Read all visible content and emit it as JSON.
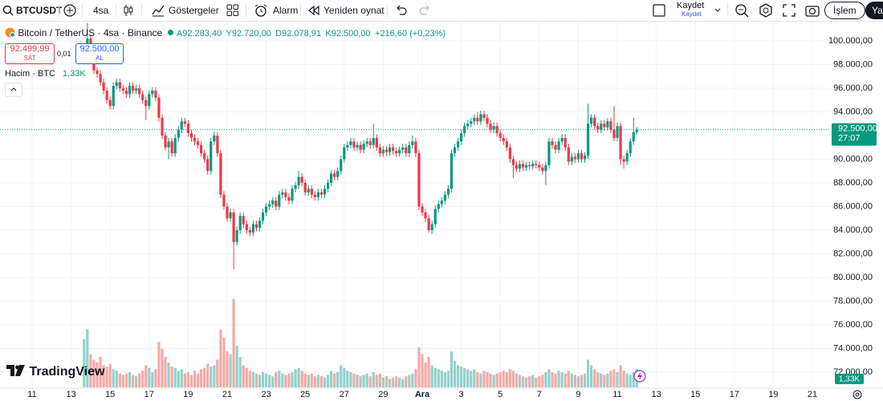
{
  "toolbar": {
    "symbol": "BTCUSDT",
    "interval": "4sa",
    "indicators": "Göstergeler",
    "alert": "Alarm",
    "replay": "Yeniden oynat",
    "save": "Kaydet",
    "save_sub": "Kaydet",
    "trade": "İşlem",
    "publish": "Ya"
  },
  "trade_panel": {
    "sell_price": "92.499,99",
    "sell_label": "SAT",
    "spread": "0,01",
    "buy_price": "92.500,00",
    "buy_label": "AL"
  },
  "logo": "TradingView",
  "chart_data": {
    "type": "candlestick",
    "title": "Bitcoin / TetherUS · 4sa · Binance",
    "ohlc_legend": [
      "A92.283,40",
      "Y92.720,00",
      "D92.078,91",
      "K92.500,00",
      "+216,60 (+0,23%)"
    ],
    "last_price_label": "92.500,00",
    "countdown": "27:07",
    "up_color": "#089981",
    "down_color": "#f23645",
    "volume_up_color": "#92d2cc",
    "volume_down_color": "#f7a9a7",
    "grid": true,
    "xlim": [
      -39.5,
      982.7
    ],
    "xticks": [
      {
        "value": 0,
        "label": "11"
      },
      {
        "value": 48,
        "label": "13"
      },
      {
        "value": 96,
        "label": "15"
      },
      {
        "value": 144,
        "label": "17"
      },
      {
        "value": 192,
        "label": "19"
      },
      {
        "value": 240,
        "label": "21"
      },
      {
        "value": 288,
        "label": "23"
      },
      {
        "value": 336,
        "label": "25"
      },
      {
        "value": 384,
        "label": "27"
      },
      {
        "value": 432,
        "label": "29"
      },
      {
        "value": 480,
        "label": "Ara"
      },
      {
        "value": 528,
        "label": "3"
      },
      {
        "value": 576,
        "label": "5"
      },
      {
        "value": 624,
        "label": "7"
      },
      {
        "value": 672,
        "label": "9"
      },
      {
        "value": 720,
        "label": "11"
      },
      {
        "value": 768,
        "label": "13"
      },
      {
        "value": 816,
        "label": "15"
      },
      {
        "value": 864,
        "label": "17"
      },
      {
        "value": 912,
        "label": "19"
      },
      {
        "value": 960,
        "label": "21"
      }
    ],
    "ylim": [
      70644,
      101627
    ],
    "yticks": [
      {
        "value": 72000,
        "label": "72.000,00"
      },
      {
        "value": 74000,
        "label": "74.000,00"
      },
      {
        "value": 76000,
        "label": "76.000,00"
      },
      {
        "value": 78000,
        "label": "78.000,00"
      },
      {
        "value": 80000,
        "label": "80.000,00"
      },
      {
        "value": 82000,
        "label": "82.000,00"
      },
      {
        "value": 84000,
        "label": "84.000,00"
      },
      {
        "value": 86000,
        "label": "86.000,00"
      },
      {
        "value": 88000,
        "label": "88.000,00"
      },
      {
        "value": 90000,
        "label": "90.000,00"
      },
      {
        "value": 92000,
        "label": "92.000,00"
      },
      {
        "value": 94000,
        "label": "94.000,00"
      },
      {
        "value": 96000,
        "label": "96.000,00"
      },
      {
        "value": 98000,
        "label": "98.000,00"
      },
      {
        "value": 100000,
        "label": "100.000,00"
      }
    ],
    "x": [
      64,
      68,
      72,
      76,
      80,
      84,
      88,
      92,
      96,
      100,
      104,
      108,
      112,
      116,
      120,
      124,
      128,
      132,
      136,
      140,
      144,
      148,
      152,
      156,
      160,
      164,
      168,
      172,
      176,
      180,
      184,
      188,
      192,
      196,
      200,
      204,
      208,
      212,
      216,
      220,
      224,
      228,
      232,
      236,
      240,
      244,
      248,
      252,
      256,
      260,
      264,
      268,
      272,
      276,
      280,
      284,
      288,
      292,
      296,
      300,
      304,
      308,
      312,
      316,
      320,
      324,
      328,
      332,
      336,
      340,
      344,
      348,
      352,
      356,
      360,
      364,
      368,
      372,
      376,
      380,
      384,
      388,
      392,
      396,
      400,
      404,
      408,
      412,
      416,
      420,
      424,
      428,
      432,
      436,
      440,
      444,
      448,
      452,
      456,
      460,
      464,
      468,
      472,
      476,
      480,
      484,
      488,
      492,
      496,
      500,
      504,
      508,
      512,
      516,
      520,
      524,
      528,
      532,
      536,
      540,
      544,
      548,
      552,
      556,
      560,
      564,
      568,
      572,
      576,
      580,
      584,
      588,
      592,
      596,
      600,
      604,
      608,
      612,
      616,
      620,
      624,
      628,
      632,
      636,
      640,
      644,
      648,
      652,
      656,
      660,
      664,
      668,
      672,
      676,
      680,
      684,
      688,
      692,
      696,
      700,
      704,
      708,
      712,
      716,
      720,
      724,
      728,
      732,
      736,
      740,
      744
    ],
    "open": [
      99000,
      99500,
      100200,
      99000,
      97500,
      97200,
      96500,
      95800,
      95000,
      94500,
      96200,
      96500,
      96000,
      95800,
      95500,
      96200,
      95800,
      96000,
      95500,
      95000,
      94500,
      95500,
      95800,
      95200,
      93500,
      92000,
      91000,
      91500,
      90500,
      91800,
      92500,
      93200,
      93000,
      92200,
      91800,
      91500,
      91200,
      90500,
      90000,
      89000,
      91500,
      92000,
      90500,
      87000,
      86000,
      85000,
      85500,
      83000,
      84000,
      85200,
      84500,
      84000,
      83800,
      84500,
      84200,
      84800,
      85500,
      86000,
      86200,
      86500,
      86000,
      87000,
      87200,
      86800,
      86500,
      87500,
      87800,
      88500,
      88000,
      87200,
      87500,
      87000,
      86800,
      87200,
      87000,
      87500,
      88000,
      88800,
      88500,
      89000,
      90000,
      91000,
      91200,
      91500,
      91000,
      91200,
      90800,
      91300,
      91500,
      91200,
      91800,
      91000,
      90500,
      90800,
      90600,
      91000,
      90700,
      90500,
      90800,
      91000,
      90500,
      91200,
      91500,
      90500,
      86000,
      85500,
      85000,
      84000,
      84500,
      85800,
      86200,
      86500,
      87000,
      87500,
      90500,
      91000,
      91500,
      92200,
      92800,
      93000,
      93200,
      93500,
      93200,
      93800,
      93500,
      93000,
      92500,
      92800,
      92200,
      91800,
      91500,
      91000,
      90000,
      89500,
      89200,
      89600,
      89300,
      89500,
      89400,
      89600,
      89500,
      89300,
      89000,
      89500,
      91500,
      91200,
      90800,
      91500,
      91800,
      91000,
      89800,
      90200,
      90000,
      90500,
      90000,
      90300,
      93000,
      93500,
      92800,
      92500,
      93000,
      92700,
      93200,
      92500,
      91800,
      92800,
      90000,
      89800,
      90500,
      91500,
      92283.4
    ],
    "high": [
      99800,
      101500,
      100500,
      99300,
      97800,
      97500,
      96800,
      96100,
      95300,
      96500,
      96800,
      96800,
      96300,
      96100,
      96500,
      96500,
      96300,
      96300,
      95800,
      95300,
      95800,
      96100,
      96100,
      95500,
      93800,
      92300,
      91800,
      91800,
      92100,
      92800,
      93500,
      93500,
      93300,
      92500,
      92100,
      91800,
      91500,
      90800,
      90300,
      91800,
      92300,
      92300,
      90800,
      87300,
      86300,
      85800,
      85800,
      84300,
      85500,
      85500,
      84800,
      84300,
      84800,
      84800,
      85100,
      85800,
      86300,
      86500,
      86800,
      86800,
      87300,
      87500,
      87500,
      87100,
      87800,
      88100,
      89000,
      88800,
      88300,
      87800,
      87800,
      87300,
      87500,
      87500,
      87800,
      88300,
      89100,
      89100,
      89300,
      90300,
      91300,
      91500,
      91800,
      91800,
      91500,
      91500,
      91600,
      91800,
      91800,
      93000,
      92100,
      91300,
      91100,
      91100,
      91300,
      91300,
      91000,
      91100,
      91300,
      91300,
      91500,
      92000,
      91800,
      90800,
      86300,
      85800,
      85300,
      84800,
      86100,
      86500,
      86800,
      87300,
      87800,
      90800,
      91300,
      91800,
      92500,
      93100,
      93300,
      93500,
      93800,
      94000,
      94100,
      94100,
      93800,
      93300,
      93100,
      93100,
      92500,
      92100,
      91800,
      91300,
      90300,
      89800,
      89900,
      89900,
      89800,
      89800,
      89900,
      89900,
      89800,
      89600,
      89800,
      91800,
      91800,
      91500,
      91800,
      92100,
      92100,
      91300,
      90500,
      90500,
      90800,
      90800,
      90600,
      94700,
      93800,
      93800,
      93100,
      93300,
      93300,
      93500,
      93500,
      94500,
      93100,
      93100,
      90300,
      90800,
      91800,
      93500,
      92720
    ],
    "low": [
      98700,
      99200,
      98700,
      97200,
      96900,
      96200,
      95500,
      94700,
      94200,
      94200,
      95900,
      95700,
      95500,
      95200,
      95200,
      95500,
      95500,
      95200,
      94700,
      93300,
      94200,
      95200,
      94900,
      93200,
      91700,
      90700,
      90000,
      90200,
      90200,
      91500,
      92200,
      92700,
      91900,
      91500,
      91200,
      90900,
      90200,
      89700,
      88700,
      88700,
      91200,
      90200,
      86700,
      85700,
      84700,
      84700,
      80700,
      82700,
      83700,
      84200,
      83700,
      83500,
      83500,
      83900,
      83900,
      84500,
      85200,
      85700,
      85900,
      85700,
      85700,
      86700,
      86500,
      86200,
      86200,
      87200,
      87500,
      87700,
      86900,
      86900,
      86700,
      86500,
      86500,
      86700,
      86700,
      87200,
      87700,
      88200,
      88200,
      88700,
      89700,
      90700,
      90900,
      90700,
      90700,
      90500,
      90500,
      91000,
      90900,
      90900,
      90700,
      90200,
      90200,
      90300,
      90300,
      90400,
      90200,
      90200,
      90500,
      90200,
      90200,
      90900,
      90200,
      85700,
      85200,
      84700,
      83800,
      83700,
      84200,
      85500,
      85900,
      86200,
      86700,
      87200,
      90200,
      90700,
      91200,
      91900,
      92500,
      92700,
      92900,
      92900,
      92900,
      93200,
      92700,
      92200,
      92200,
      91900,
      91500,
      91200,
      90700,
      89700,
      88400,
      88900,
      88900,
      89000,
      89000,
      89100,
      89100,
      89200,
      89000,
      88700,
      87800,
      89200,
      90900,
      90500,
      90500,
      91200,
      90700,
      89500,
      89500,
      89700,
      89700,
      89700,
      89700,
      90000,
      92700,
      92500,
      92200,
      92200,
      92400,
      92400,
      92200,
      91500,
      91500,
      89500,
      89200,
      89500,
      90200,
      91200,
      92078.91
    ],
    "close": [
      99500,
      100200,
      99000,
      97500,
      97200,
      96500,
      95800,
      95000,
      94500,
      96200,
      96500,
      96000,
      95800,
      95500,
      96200,
      95800,
      96000,
      95500,
      95000,
      94500,
      95500,
      95800,
      95200,
      93500,
      92000,
      91000,
      91500,
      90500,
      91800,
      92500,
      93200,
      93000,
      92200,
      91800,
      91500,
      91200,
      90500,
      90000,
      89000,
      91500,
      92000,
      90500,
      87000,
      86000,
      85000,
      85500,
      83000,
      84000,
      85200,
      84500,
      84000,
      83800,
      84500,
      84200,
      84800,
      85500,
      86000,
      86200,
      86500,
      86000,
      87000,
      87200,
      86800,
      86500,
      87500,
      87800,
      88500,
      88000,
      87200,
      87500,
      87000,
      86800,
      87200,
      87000,
      87500,
      88000,
      88800,
      88500,
      89000,
      90000,
      91000,
      91200,
      91500,
      91000,
      91200,
      90800,
      91300,
      91500,
      91200,
      91800,
      91000,
      90500,
      90800,
      90600,
      91000,
      90700,
      90500,
      90800,
      91000,
      90500,
      91200,
      91500,
      90500,
      86000,
      85500,
      85000,
      84000,
      84500,
      85800,
      86200,
      86500,
      87000,
      87500,
      90500,
      91000,
      91500,
      92200,
      92800,
      93000,
      93200,
      93500,
      93200,
      93800,
      93500,
      93000,
      92500,
      92800,
      92200,
      91800,
      91500,
      91000,
      90000,
      89500,
      89200,
      89600,
      89300,
      89500,
      89400,
      89600,
      89500,
      89300,
      89000,
      89500,
      91500,
      91200,
      90800,
      91500,
      91800,
      91000,
      89800,
      90200,
      90000,
      90500,
      90000,
      90300,
      93000,
      93500,
      92800,
      92500,
      93000,
      92700,
      93200,
      92500,
      91800,
      92800,
      90000,
      89800,
      90500,
      91500,
      92283.4,
      92500
    ],
    "volume": {
      "name": "Hacim · BTC",
      "last_label": "1,33K",
      "values": [
        3500,
        4200,
        2400,
        2000,
        1800,
        2200,
        1600,
        1500,
        1700,
        1300,
        1200,
        1000,
        900,
        1000,
        1100,
        900,
        800,
        1000,
        1200,
        1600,
        1400,
        1100,
        1300,
        3300,
        2800,
        2200,
        1800,
        1500,
        1400,
        1200,
        1300,
        1000,
        1100,
        900,
        1200,
        1000,
        1300,
        1400,
        1700,
        1500,
        1600,
        2000,
        4200,
        3600,
        2600,
        2400,
        6400,
        3000,
        2200,
        1600,
        1400,
        1200,
        1100,
        1000,
        900,
        1100,
        1000,
        900,
        800,
        1100,
        1200,
        1000,
        900,
        1000,
        1100,
        1300,
        1400,
        1200,
        1000,
        900,
        1000,
        800,
        900,
        800,
        700,
        900,
        1200,
        1000,
        1100,
        1600,
        1400,
        1200,
        1100,
        1000,
        900,
        800,
        900,
        1000,
        800,
        1100,
        900,
        1000,
        700,
        800,
        600,
        700,
        800,
        700,
        600,
        800,
        900,
        1000,
        1300,
        2900,
        2400,
        1800,
        2200,
        1600,
        1400,
        1300,
        1200,
        1100,
        1200,
        2600,
        1900,
        1600,
        1500,
        1400,
        1300,
        1200,
        1300,
        1100,
        1000,
        1200,
        1100,
        1000,
        900,
        1000,
        1100,
        1200,
        1100,
        1300,
        1200,
        1000,
        900,
        800,
        700,
        800,
        900,
        700,
        800,
        900,
        1100,
        1300,
        1100,
        1000,
        1200,
        1100,
        1000,
        1200,
        1000,
        900,
        800,
        900,
        1000,
        2000,
        1600,
        1300,
        1100,
        1000,
        900,
        1000,
        1200,
        1300,
        1100,
        1600,
        1200,
        1000,
        900,
        1100,
        1330
      ]
    }
  }
}
